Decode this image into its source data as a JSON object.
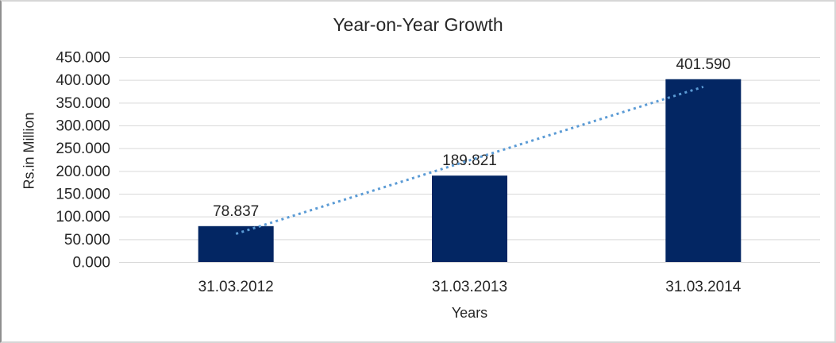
{
  "chart_data": {
    "type": "bar",
    "title": "Year-on-Year Growth",
    "xlabel": "Years",
    "ylabel": "Rs.in Million",
    "categories": [
      "31.03.2012",
      "31.03.2013",
      "31.03.2014"
    ],
    "values": [
      78.837,
      189.821,
      401.59
    ],
    "value_labels": [
      "78.837",
      "189.821",
      "401.590"
    ],
    "ylim": [
      0,
      450
    ],
    "ytick_step": 50,
    "yticks": [
      {
        "value": 0,
        "label": "0.000"
      },
      {
        "value": 50,
        "label": "50.000"
      },
      {
        "value": 100,
        "label": "100.000"
      },
      {
        "value": 150,
        "label": "150.000"
      },
      {
        "value": 200,
        "label": "200.000"
      },
      {
        "value": 250,
        "label": "250.000"
      },
      {
        "value": 300,
        "label": "300.000"
      },
      {
        "value": 350,
        "label": "350.000"
      },
      {
        "value": 400,
        "label": "400.000"
      },
      {
        "value": 450,
        "label": "450.000"
      }
    ],
    "grid": true,
    "legend_position": "none",
    "trendline": {
      "type": "linear",
      "style": "dotted",
      "start_value": 62.0,
      "end_value": 384.8,
      "color": "#5b9bd5"
    },
    "colors": {
      "bar": "#032663",
      "gridline": "#d9d9d9",
      "text": "#262626",
      "frame_border": "#d6d6d6"
    }
  }
}
